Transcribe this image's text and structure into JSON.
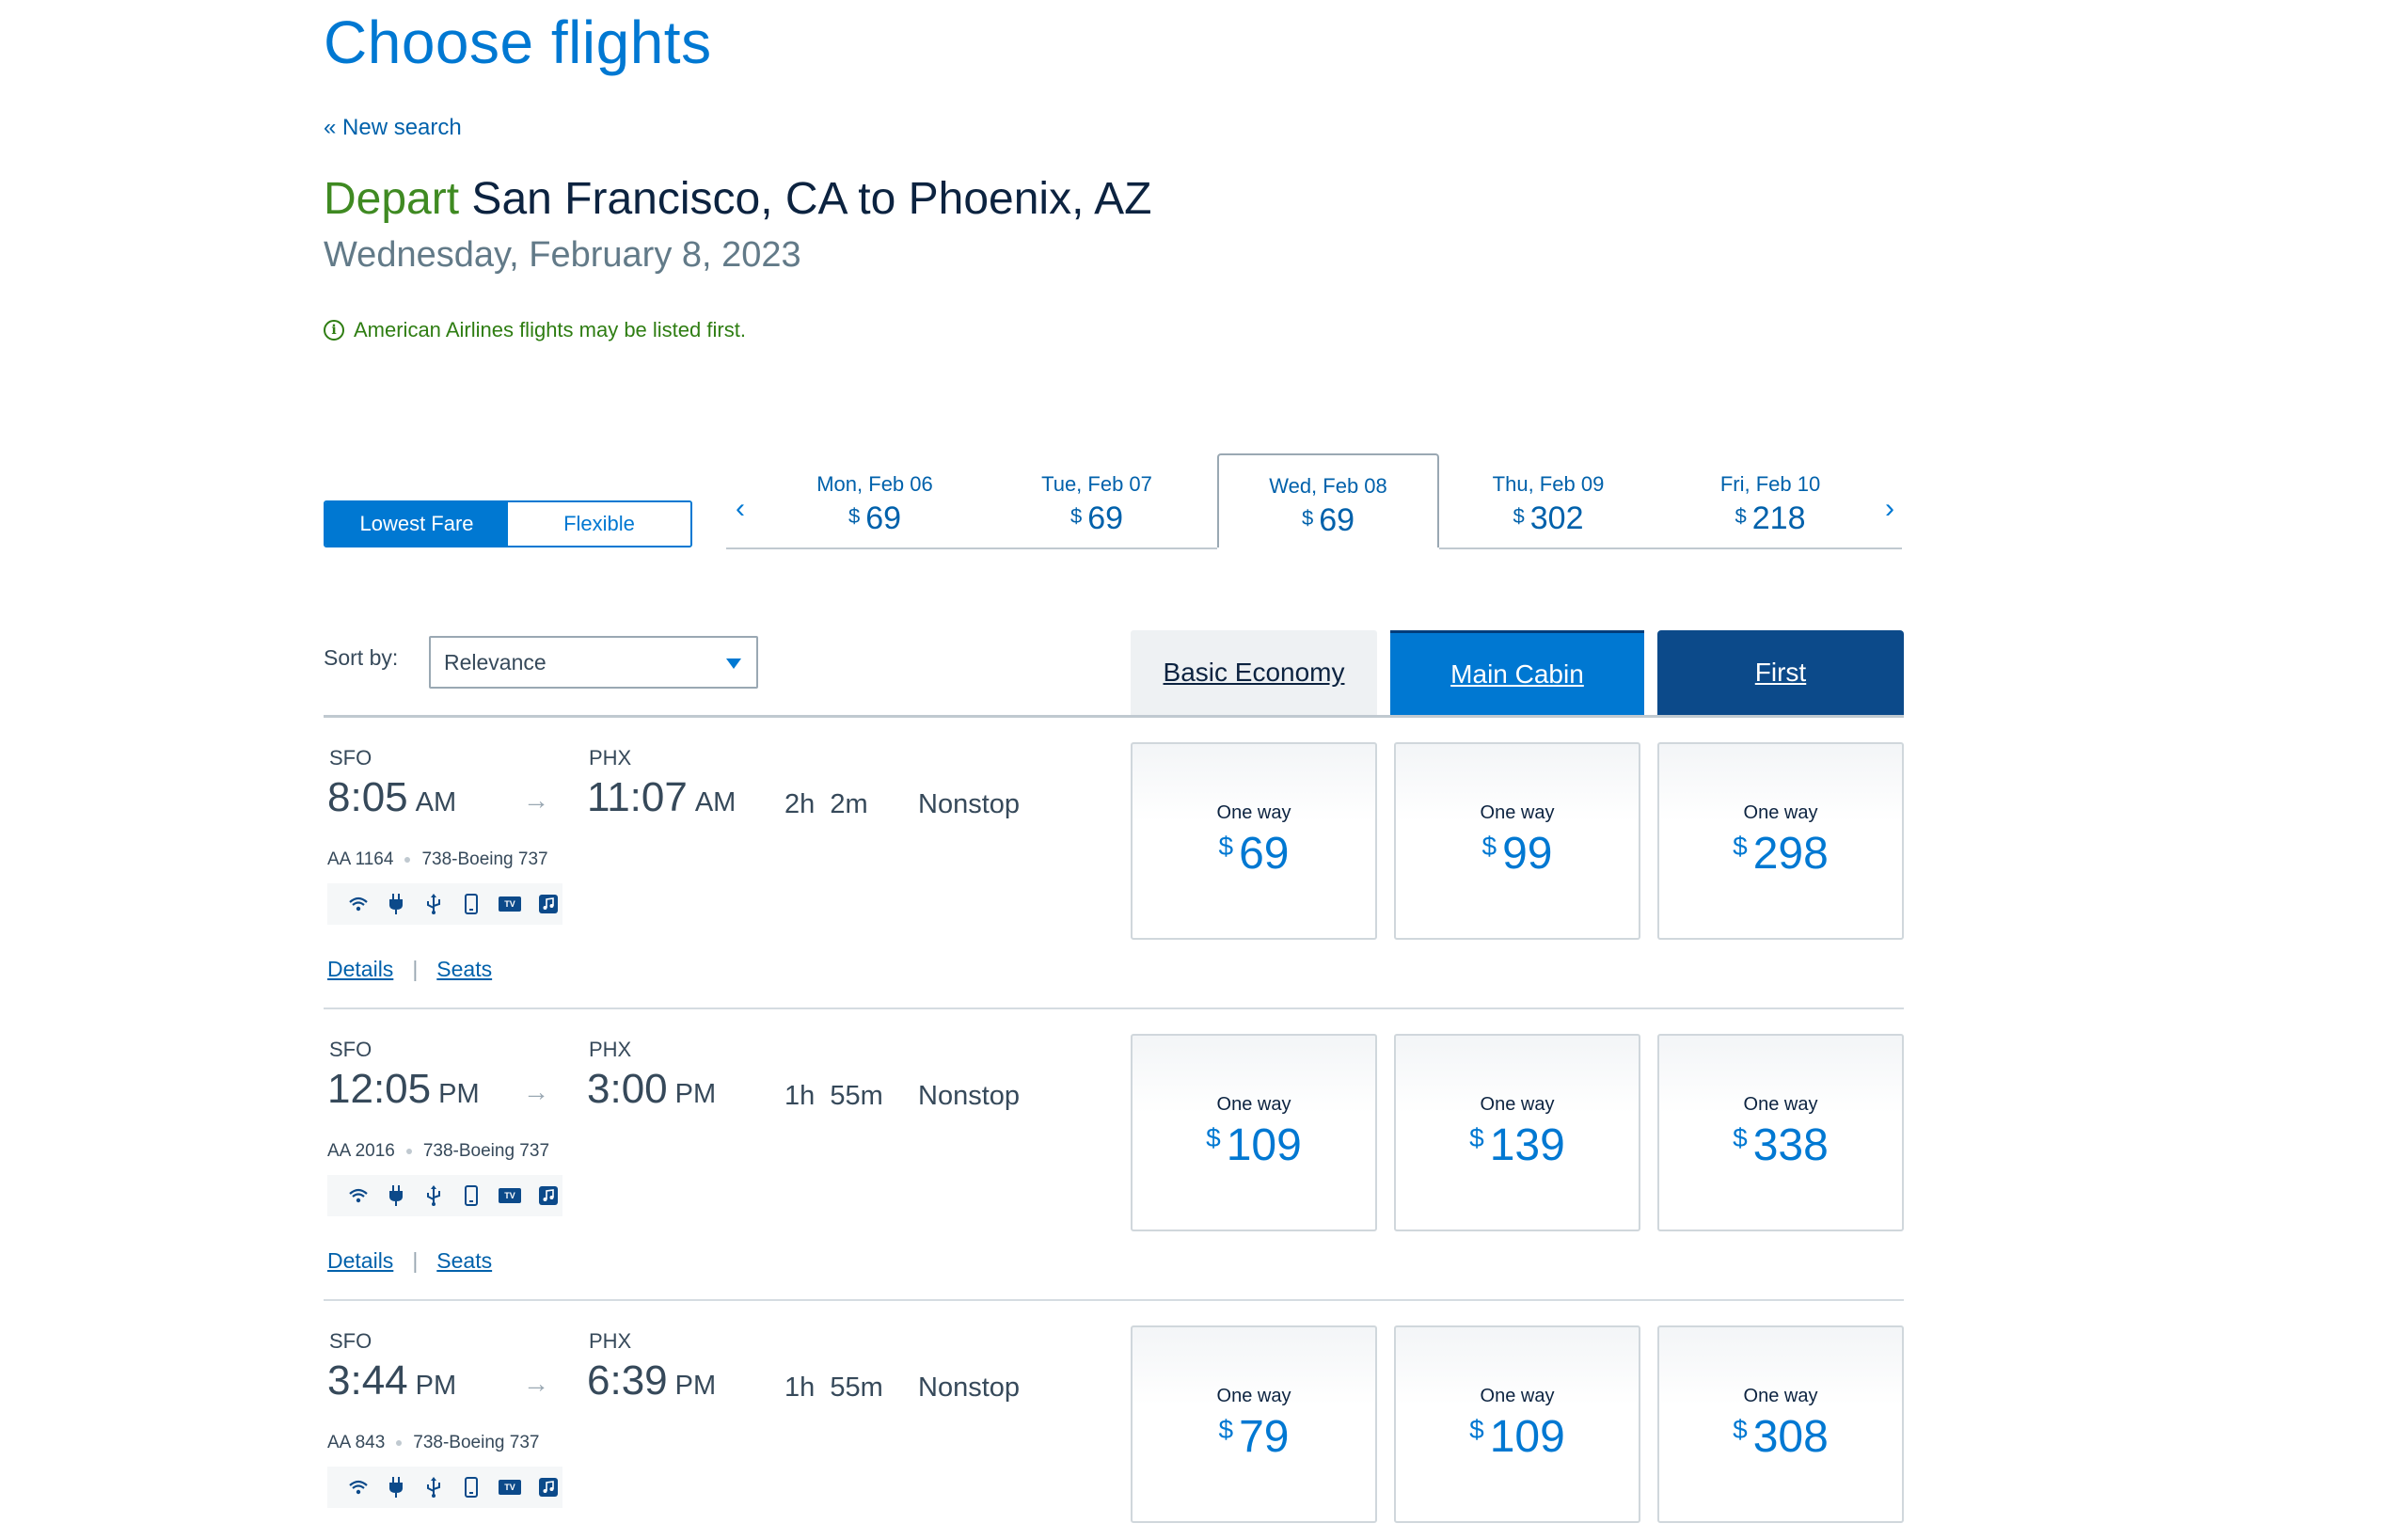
{
  "page": {
    "title": "Choose flights",
    "new_search": "« New search"
  },
  "route": {
    "depart_word": "Depart",
    "route_text": "San Francisco, CA to Phoenix, AZ",
    "date": "Wednesday, February 8, 2023",
    "info": "American Airlines flights may be listed first."
  },
  "fare_toggle": {
    "options": [
      "Lowest Fare",
      "Flexible"
    ],
    "selected": "Lowest Fare"
  },
  "date_strip": {
    "currency": "$",
    "dates": [
      {
        "label": "Mon, Feb 06",
        "price": "69"
      },
      {
        "label": "Tue, Feb 07",
        "price": "69"
      },
      {
        "label": "Wed, Feb 08",
        "price": "69",
        "selected": true
      },
      {
        "label": "Thu, Feb 09",
        "price": "302"
      },
      {
        "label": "Fri, Feb 10",
        "price": "218"
      }
    ]
  },
  "sort": {
    "label": "Sort by:",
    "value": "Relevance"
  },
  "cabins": {
    "basic": "Basic Economy",
    "main": "Main Cabin",
    "first": "First"
  },
  "colors": {
    "accent": "#0078d2",
    "navy": "#0c2340",
    "depart_green": "#3f8a22"
  },
  "amenity_icons": [
    "wifi-icon",
    "power-icon",
    "usb-icon",
    "phone-icon",
    "tv-icon",
    "music-icon"
  ],
  "flights": [
    {
      "origin": "SFO",
      "dep_time": "8:05",
      "dep_ampm": "AM",
      "dest": "PHX",
      "arr_time": "11:07",
      "arr_ampm": "AM",
      "duration": "2h  2m",
      "stops": "Nonstop",
      "flight_no": "AA 1164",
      "aircraft": "738-Boeing 737",
      "details": "Details",
      "seats": "Seats",
      "fares": [
        {
          "label": "One way",
          "currency": "$",
          "price": "69"
        },
        {
          "label": "One way",
          "currency": "$",
          "price": "99"
        },
        {
          "label": "One way",
          "currency": "$",
          "price": "298"
        }
      ]
    },
    {
      "origin": "SFO",
      "dep_time": "12:05",
      "dep_ampm": "PM",
      "dest": "PHX",
      "arr_time": "3:00",
      "arr_ampm": "PM",
      "duration": "1h  55m",
      "stops": "Nonstop",
      "flight_no": "AA 2016",
      "aircraft": "738-Boeing 737",
      "details": "Details",
      "seats": "Seats",
      "fares": [
        {
          "label": "One way",
          "currency": "$",
          "price": "109"
        },
        {
          "label": "One way",
          "currency": "$",
          "price": "139"
        },
        {
          "label": "One way",
          "currency": "$",
          "price": "338"
        }
      ]
    },
    {
      "origin": "SFO",
      "dep_time": "3:44",
      "dep_ampm": "PM",
      "dest": "PHX",
      "arr_time": "6:39",
      "arr_ampm": "PM",
      "duration": "1h  55m",
      "stops": "Nonstop",
      "flight_no": "AA 843",
      "aircraft": "738-Boeing 737",
      "details": "Details",
      "seats": "Seats",
      "fares": [
        {
          "label": "One way",
          "currency": "$",
          "price": "79"
        },
        {
          "label": "One way",
          "currency": "$",
          "price": "109"
        },
        {
          "label": "One way",
          "currency": "$",
          "price": "308"
        }
      ]
    }
  ]
}
